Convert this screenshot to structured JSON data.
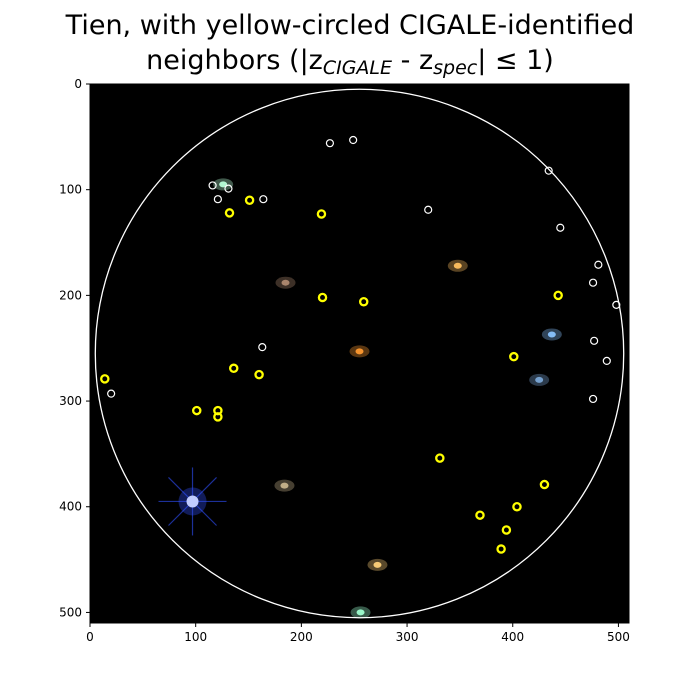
{
  "title": {
    "line1": "Tien, with yellow-circled CIGALE-identified",
    "line2_prefix": "neighbors (|z",
    "sub1": "CIGALE",
    "middle": " - z",
    "sub2": "spec",
    "suffix": "| ≤ 1)"
  },
  "colors": {
    "background": "#000000",
    "selected_marker": "#ffff00",
    "other_marker": "#ffffff",
    "aperture_circle": "#ffffff"
  },
  "image_axes": {
    "x_range": [
      0,
      510
    ],
    "y_range": [
      0,
      510
    ],
    "y_inverted": true,
    "x_ticks": [
      0,
      100,
      200,
      300,
      400,
      500
    ],
    "y_ticks": [
      0,
      100,
      200,
      300,
      400,
      500
    ]
  },
  "aperture": {
    "center": [
      255,
      255
    ],
    "radius": 250
  },
  "yellow_neighbors": [
    [
      14,
      279
    ],
    [
      101,
      309
    ],
    [
      121,
      309
    ],
    [
      121,
      315
    ],
    [
      136,
      269
    ],
    [
      160,
      275
    ],
    [
      132,
      122
    ],
    [
      151,
      110
    ],
    [
      219,
      123
    ],
    [
      220,
      202
    ],
    [
      259,
      206
    ],
    [
      401,
      258
    ],
    [
      443,
      200
    ],
    [
      331,
      354
    ],
    [
      430,
      379
    ],
    [
      404,
      400
    ],
    [
      369,
      408
    ],
    [
      394,
      422
    ],
    [
      389,
      440
    ]
  ],
  "white_neighbors": [
    [
      20,
      293
    ],
    [
      116,
      96
    ],
    [
      131,
      99
    ],
    [
      121,
      109
    ],
    [
      164,
      109
    ],
    [
      163,
      249
    ],
    [
      227,
      56
    ],
    [
      249,
      53
    ],
    [
      320,
      119
    ],
    [
      434,
      82
    ],
    [
      445,
      136
    ],
    [
      481,
      171
    ],
    [
      476,
      188
    ],
    [
      498,
      209
    ],
    [
      477,
      243
    ],
    [
      489,
      262
    ],
    [
      476,
      298
    ]
  ],
  "sources": [
    {
      "type": "star",
      "x": 97,
      "y": 395,
      "color": "#3050ff"
    },
    {
      "type": "galaxy",
      "x": 272,
      "y": 455,
      "color": "#ffd27a"
    },
    {
      "type": "galaxy",
      "x": 348,
      "y": 172,
      "color": "#ffc060"
    },
    {
      "type": "galaxy",
      "x": 437,
      "y": 237,
      "color": "#8ac4ff"
    },
    {
      "type": "galaxy",
      "x": 255,
      "y": 253,
      "color": "#ff9a30"
    },
    {
      "type": "galaxy",
      "x": 256,
      "y": 500,
      "color": "#9effd0"
    },
    {
      "type": "galaxy",
      "x": 184,
      "y": 380,
      "color": "#c8b48c"
    },
    {
      "type": "galaxy",
      "x": 126,
      "y": 95,
      "color": "#b8ffd8"
    },
    {
      "type": "galaxy",
      "x": 425,
      "y": 280,
      "color": "#7aa6d6"
    },
    {
      "type": "galaxy",
      "x": 185,
      "y": 188,
      "color": "#b08a70"
    }
  ]
}
